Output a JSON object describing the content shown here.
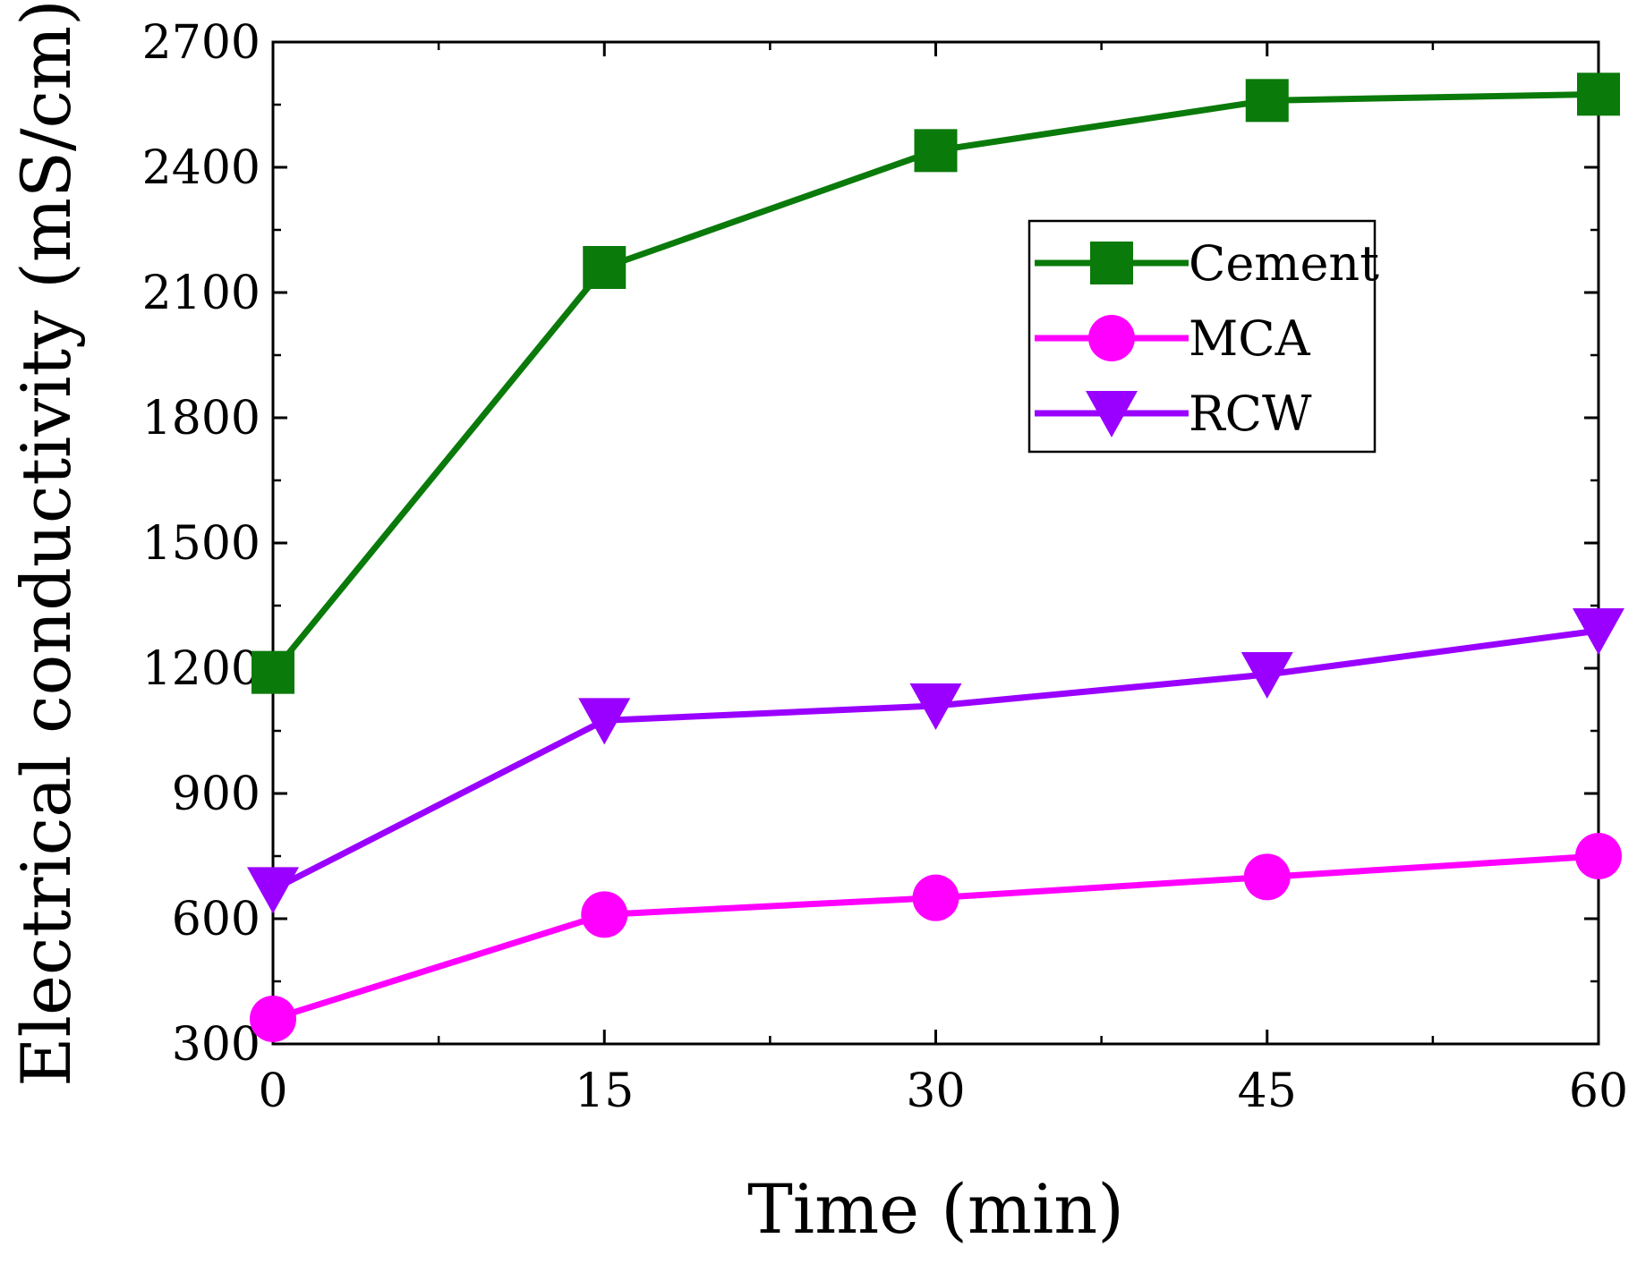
{
  "chart_data": {
    "type": "line",
    "xlabel": "Time (min)",
    "ylabel": "Electrical conductivity (mS/cm)",
    "x": [
      0,
      15,
      30,
      45,
      60
    ],
    "xlim": [
      0,
      60
    ],
    "ylim": [
      300,
      2700
    ],
    "xticks": [
      "0",
      "15",
      "30",
      "45",
      "60"
    ],
    "yticks": [
      "300",
      "600",
      "900",
      "1200",
      "1500",
      "1800",
      "2100",
      "2400",
      "2700"
    ],
    "grid": false,
    "legend_position": "upper-right",
    "series": [
      {
        "name": "Cement",
        "color": "#0a7a0a",
        "marker": "square",
        "values": [
          1190,
          2160,
          2440,
          2560,
          2575
        ]
      },
      {
        "name": "MCA",
        "color": "#ff00ff",
        "marker": "circle",
        "values": [
          360,
          610,
          650,
          700,
          750
        ]
      },
      {
        "name": "RCW",
        "color": "#9900ff",
        "marker": "triangle-down",
        "values": [
          670,
          1075,
          1110,
          1185,
          1290
        ]
      }
    ]
  }
}
